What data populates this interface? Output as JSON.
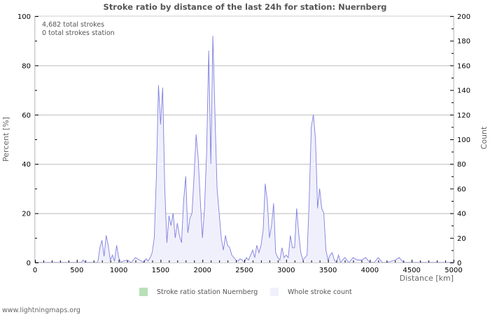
{
  "chart_data": {
    "type": "area",
    "title": "Stroke ratio by distance of the last 24h for station: Nuernberg",
    "xlabel": "Distance   [km]",
    "ylabel_left": "Percent   [%]",
    "ylabel_right": "Count",
    "xlim": [
      0,
      5000
    ],
    "ylim_left": [
      0,
      100
    ],
    "ylim_right": [
      0,
      200
    ],
    "x_ticks": [
      0,
      500,
      1000,
      1500,
      2000,
      2500,
      3000,
      3500,
      4000,
      4500,
      5000
    ],
    "y_ticks_left": [
      0,
      20,
      40,
      60,
      80,
      100
    ],
    "y_ticks_right": [
      0,
      20,
      40,
      60,
      80,
      100,
      120,
      140,
      160,
      180,
      200
    ],
    "grid": true,
    "legend_position": "bottom",
    "annotations": [
      "4,682 total strokes",
      "0 total strokes station"
    ],
    "series": [
      {
        "name": "Stroke ratio station Nuernberg",
        "axis": "left",
        "color": "#b8e0b8",
        "x": [],
        "values": []
      },
      {
        "name": "Whole stroke count",
        "axis": "right",
        "color": "#8080e0",
        "fill": "#f0f0fc",
        "x": [
          0,
          550,
          575,
          600,
          750,
          775,
          800,
          825,
          850,
          875,
          900,
          925,
          950,
          975,
          1000,
          1025,
          1050,
          1100,
          1150,
          1200,
          1250,
          1300,
          1325,
          1350,
          1375,
          1400,
          1425,
          1450,
          1475,
          1500,
          1525,
          1550,
          1575,
          1600,
          1625,
          1650,
          1675,
          1700,
          1725,
          1750,
          1775,
          1800,
          1825,
          1850,
          1875,
          1900,
          1925,
          1950,
          1975,
          2000,
          2025,
          2050,
          2075,
          2100,
          2125,
          2150,
          2175,
          2200,
          2225,
          2250,
          2275,
          2300,
          2325,
          2350,
          2375,
          2400,
          2425,
          2450,
          2475,
          2500,
          2525,
          2550,
          2600,
          2625,
          2650,
          2675,
          2700,
          2725,
          2750,
          2775,
          2800,
          2825,
          2850,
          2875,
          2900,
          2925,
          2950,
          2975,
          3000,
          3025,
          3050,
          3075,
          3100,
          3125,
          3150,
          3175,
          3200,
          3225,
          3250,
          3275,
          3300,
          3325,
          3350,
          3375,
          3400,
          3425,
          3450,
          3475,
          3500,
          3525,
          3550,
          3575,
          3600,
          3625,
          3650,
          3700,
          3750,
          3800,
          3850,
          3900,
          3950,
          4000,
          4050,
          4100,
          4150,
          4200,
          4300,
          4350,
          4400,
          4450,
          5000
        ],
        "values": [
          0,
          0,
          2,
          0,
          0,
          12,
          18,
          5,
          22,
          14,
          2,
          6,
          1,
          14,
          4,
          0,
          1,
          2,
          0,
          4,
          2,
          0,
          3,
          1,
          4,
          8,
          20,
          70,
          144,
          112,
          142,
          60,
          16,
          38,
          30,
          40,
          20,
          32,
          22,
          16,
          50,
          70,
          24,
          36,
          40,
          70,
          104,
          84,
          50,
          20,
          44,
          90,
          172,
          80,
          184,
          120,
          60,
          40,
          20,
          10,
          22,
          14,
          12,
          6,
          4,
          2,
          1,
          3,
          2,
          0,
          4,
          2,
          10,
          4,
          14,
          8,
          14,
          26,
          64,
          50,
          20,
          30,
          48,
          8,
          4,
          2,
          12,
          4,
          6,
          4,
          22,
          12,
          12,
          44,
          24,
          8,
          2,
          4,
          6,
          50,
          110,
          120,
          100,
          44,
          60,
          44,
          40,
          10,
          2,
          6,
          8,
          2,
          0,
          6,
          0,
          4,
          0,
          4,
          2,
          2,
          4,
          0,
          0,
          4,
          0,
          0,
          2,
          4,
          0,
          0,
          0
        ]
      }
    ]
  },
  "title": "Stroke ratio by distance of the last 24h for station: Nuernberg",
  "info": {
    "total_strokes": "4,682 total strokes",
    "total_strokes_station": "0 total strokes station"
  },
  "legend": {
    "station_label": "Stroke ratio station Nuernberg",
    "station_color": "#b8e0b8",
    "whole_label": "Whole stroke count",
    "whole_color": "#f0f0fc"
  },
  "footer": "www.lightningmaps.org"
}
